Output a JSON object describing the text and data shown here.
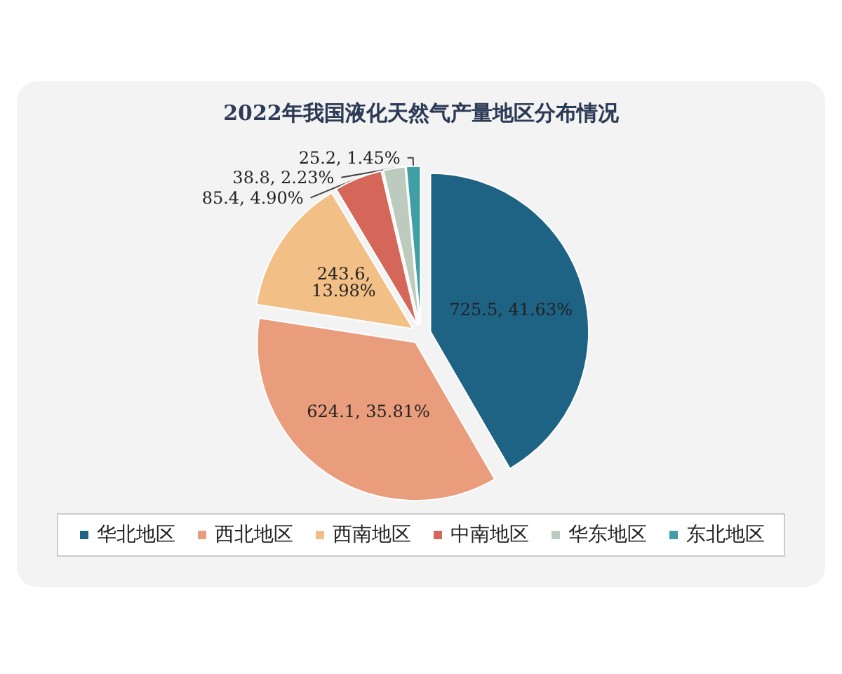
{
  "chart_data": {
    "type": "pie",
    "title": "2022年我国液化天然气产量地区分布情况",
    "categories": [
      "华北地区",
      "西北地区",
      "西南地区",
      "中南地区",
      "华东地区",
      "东北地区"
    ],
    "values": [
      725.5,
      624.1,
      243.6,
      85.4,
      38.8,
      25.2
    ],
    "value_labels": [
      "725.5, 41.63%",
      "624.1, 35.81%",
      "243.6,\n13.98%",
      "85.4, 4.90%",
      "38.8, 2.23%",
      "25.2, 1.45%"
    ],
    "colors": [
      "#1e6384",
      "#e99d7c",
      "#f2bf86",
      "#d5675a",
      "#bccbbd",
      "#3f9ea6"
    ],
    "legend": "bottom"
  }
}
